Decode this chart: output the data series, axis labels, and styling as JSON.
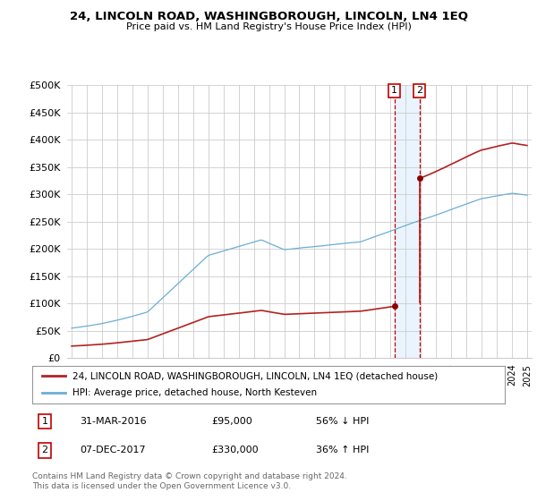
{
  "title": "24, LINCOLN ROAD, WASHINGBOROUGH, LINCOLN, LN4 1EQ",
  "subtitle": "Price paid vs. HM Land Registry's House Price Index (HPI)",
  "ylim": [
    0,
    500000
  ],
  "yticks": [
    0,
    50000,
    100000,
    150000,
    200000,
    250000,
    300000,
    350000,
    400000,
    450000,
    500000
  ],
  "ytick_labels": [
    "£0",
    "£50K",
    "£100K",
    "£150K",
    "£200K",
    "£250K",
    "£300K",
    "£350K",
    "£400K",
    "£450K",
    "£500K"
  ],
  "hpi_color": "#6baed6",
  "price_color": "#b22222",
  "marker_color": "#8b0000",
  "vline_color": "#c00000",
  "shade_color": "#ddeeff",
  "transaction1_year": 2016.25,
  "transaction1_price": 95000,
  "transaction2_year": 2017.92,
  "transaction2_price": 330000,
  "legend_label_price": "24, LINCOLN ROAD, WASHINGBOROUGH, LINCOLN, LN4 1EQ (detached house)",
  "legend_label_hpi": "HPI: Average price, detached house, North Kesteven",
  "annotation1_date": "31-MAR-2016",
  "annotation1_price": "£95,000",
  "annotation1_change": "56% ↓ HPI",
  "annotation2_date": "07-DEC-2017",
  "annotation2_price": "£330,000",
  "annotation2_change": "36% ↑ HPI",
  "footer": "Contains HM Land Registry data © Crown copyright and database right 2024.\nThis data is licensed under the Open Government Licence v3.0.",
  "background_color": "#ffffff",
  "grid_color": "#cccccc",
  "xlim_left": 1994.7,
  "xlim_right": 2025.3
}
